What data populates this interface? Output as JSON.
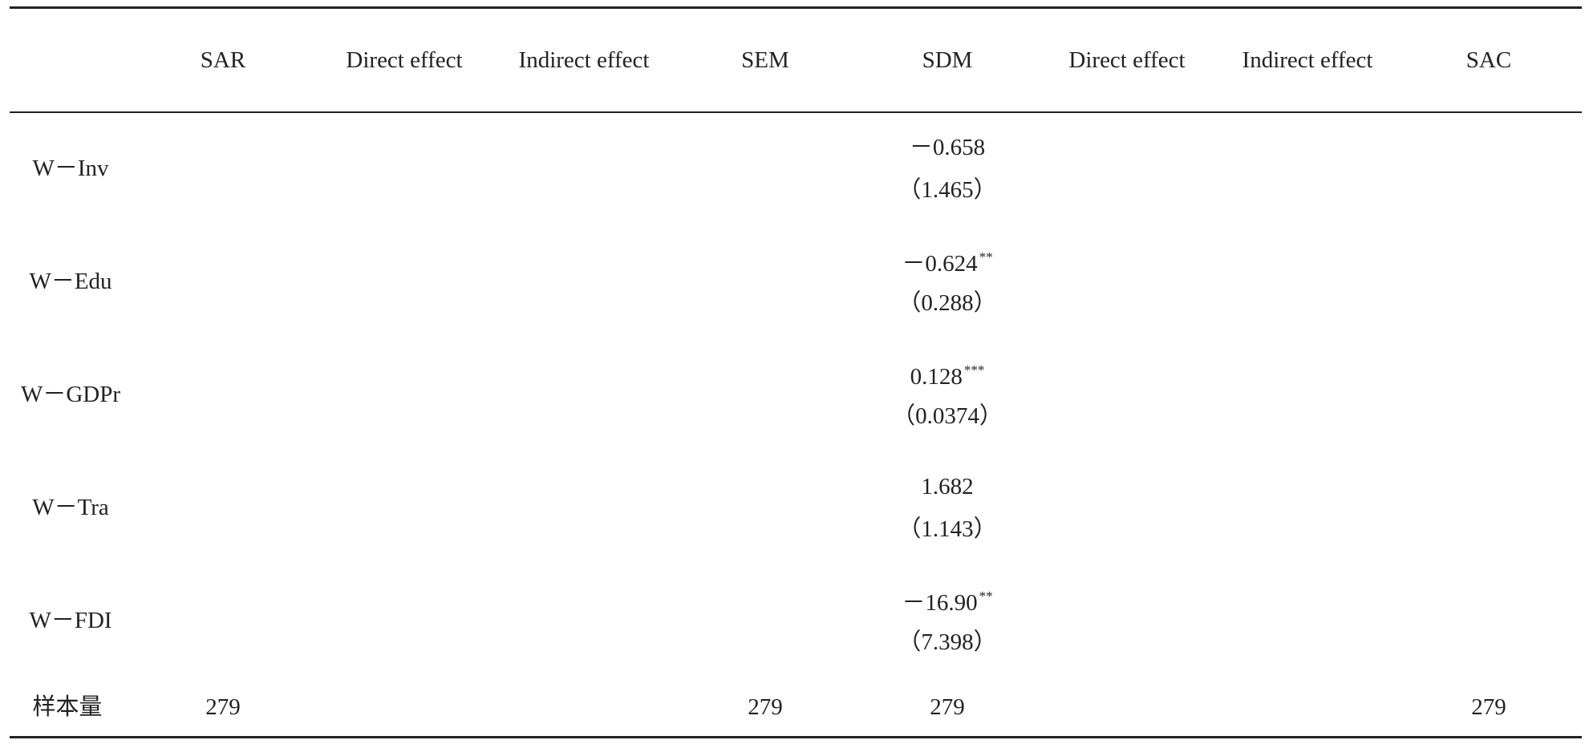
{
  "table": {
    "columns": [
      "SAR",
      "Direct effect",
      "Indirect effect",
      "SEM",
      "SDM",
      "Direct effect",
      "Indirect effect",
      "SAC"
    ],
    "rows": [
      {
        "label": "W－Inv",
        "SDM": {
          "value": "－0.658",
          "se": "（1.465）"
        }
      },
      {
        "label": "W－Edu",
        "SDM": {
          "value": "－0.624",
          "stars": "**",
          "se": "（0.288）"
        }
      },
      {
        "label": "W－GDPr",
        "SDM": {
          "value": "0.128",
          "stars": "***",
          "se": "（0.0374）"
        }
      },
      {
        "label": "W－Tra",
        "SDM": {
          "value": "1.682",
          "se": "（1.143）"
        }
      },
      {
        "label": "W－FDI",
        "SDM": {
          "value": "－16.90",
          "stars": "**",
          "se": "（7.398）"
        }
      }
    ],
    "sample_size": {
      "label": "样本量",
      "SAR": "279",
      "SEM": "279",
      "SDM": "279",
      "SAC": "279"
    }
  }
}
